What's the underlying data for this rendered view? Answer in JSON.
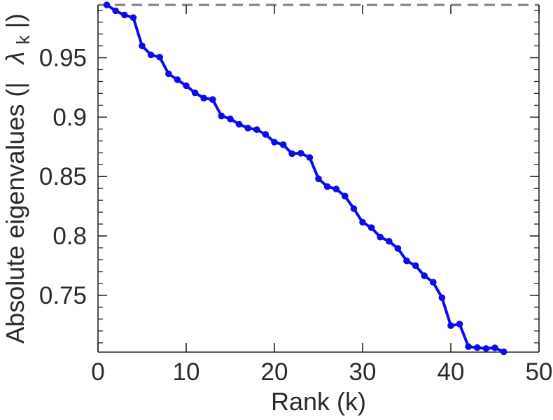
{
  "figure": {
    "background": "#ffffff",
    "axis_color": "#262626",
    "text_color": "#2b2b2b"
  },
  "chart_data": {
    "type": "line",
    "title": "",
    "series_name": "absolute-eigenvalues-vs-rank",
    "xlabel": "Rank (k)",
    "ylabel_prefix": "Absolute eigenvalues (|",
    "ylabel_symbol": "λ",
    "ylabel_subscript": "k",
    "ylabel_suffix": "|)",
    "xlim": [
      0,
      50
    ],
    "ylim": [
      0.7022,
      0.9945
    ],
    "xticks": [
      0,
      10,
      20,
      30,
      40,
      50
    ],
    "xtick_labels": [
      "0",
      "10",
      "20",
      "30",
      "40",
      "50"
    ],
    "yticks": [
      0.75,
      0.8,
      0.85,
      0.9,
      0.95
    ],
    "ytick_labels": [
      "0.75",
      "0.8",
      "0.85",
      "0.9",
      "0.95"
    ],
    "y_minor_step": 0.01,
    "grid": false,
    "legend": null,
    "line_color": "#0b0bf0",
    "marker": "circle",
    "reference_line": {
      "y": 0.9945,
      "style": "dashed",
      "color": "#7f7f7f"
    },
    "x": [
      1,
      2,
      3,
      4,
      5,
      6,
      7,
      8,
      9,
      10,
      11,
      12,
      13,
      14,
      15,
      16,
      17,
      18,
      19,
      20,
      21,
      22,
      23,
      24,
      25,
      26,
      27,
      28,
      29,
      30,
      31,
      32,
      33,
      34,
      35,
      36,
      37,
      38,
      39,
      40,
      41,
      42,
      43,
      44,
      45,
      46
    ],
    "values": [
      0.9945,
      0.9895,
      0.986,
      0.9838,
      0.96,
      0.9525,
      0.9505,
      0.9365,
      0.9315,
      0.9265,
      0.9205,
      0.916,
      0.9148,
      0.901,
      0.8985,
      0.894,
      0.8908,
      0.8895,
      0.8855,
      0.879,
      0.8768,
      0.8692,
      0.8696,
      0.866,
      0.8482,
      0.8415,
      0.8395,
      0.8335,
      0.823,
      0.8115,
      0.807,
      0.799,
      0.7955,
      0.7895,
      0.779,
      0.775,
      0.7665,
      0.761,
      0.748,
      0.7245,
      0.7258,
      0.7068,
      0.706,
      0.7052,
      0.7058,
      0.7025
    ]
  }
}
